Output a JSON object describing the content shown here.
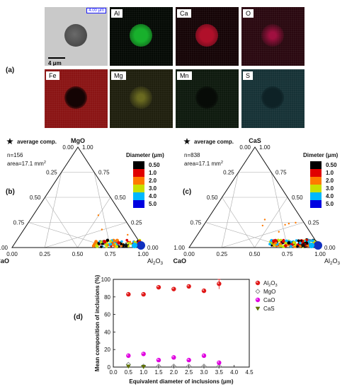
{
  "panel_a": {
    "label": "(a)",
    "maps": [
      {
        "name": "SE",
        "tag": "",
        "bg": "#c9c9c9",
        "spot": "#4a4a4a",
        "type": "se"
      },
      {
        "name": "Al",
        "tag": "Al",
        "bg": "#050a05",
        "spot": "#18b02c",
        "type": "bright"
      },
      {
        "name": "Ca",
        "tag": "Ca",
        "bg": "#150406",
        "spot": "#b0102a",
        "type": "bright"
      },
      {
        "name": "O",
        "tag": "O",
        "bg": "#2a0810",
        "spot": "#a01040",
        "type": "faint"
      },
      {
        "name": "Fe",
        "tag": "Fe",
        "bg": "#8a1414",
        "spot": "#140404",
        "type": "dark"
      },
      {
        "name": "Mg",
        "tag": "Mg",
        "bg": "#1f1f0e",
        "spot": "#6a6a20",
        "type": "faint"
      },
      {
        "name": "Mn",
        "tag": "Mn",
        "bg": "#0e1a0e",
        "spot": "#070b07",
        "type": "dark"
      },
      {
        "name": "S",
        "tag": "S",
        "bg": "#163236",
        "spot": "#0e2226",
        "type": "dark"
      }
    ],
    "scale_top": "4.00 μm",
    "scale_bottom": "4 μm"
  },
  "panel_b": {
    "label": "(b)",
    "legend_star": "average comp.",
    "n_text": "n=156",
    "area_text": "area=17.1 mm",
    "area_sup": "2",
    "top_label": "MgO",
    "left_label": "CaO",
    "right_label": "Al",
    "right_sub": "2",
    "right_tail": "O",
    "right_sub2": "3"
  },
  "panel_c": {
    "label": "(c)",
    "legend_star": "average comp.",
    "n_text": "n=838",
    "area_text": "area=17.1 mm",
    "area_sup": "2",
    "top_label": "CaS",
    "left_label": "CaO",
    "right_label": "Al",
    "right_sub": "2",
    "right_tail": "O",
    "right_sub2": "3"
  },
  "ternary_ticks": {
    "left_edge": [
      "0.00",
      "0.25",
      "0.50",
      "0.75",
      "1.00"
    ],
    "right_edge": [
      "1.00",
      "0.75",
      "0.50",
      "0.25",
      "0.00"
    ],
    "bottom_edge": [
      "0.00",
      "0.25",
      "0.50",
      "0.75",
      "1.00"
    ]
  },
  "diameter_legend_b": {
    "title": "Diameter (μm)",
    "entries": [
      {
        "label": "0.50",
        "color": "#000000"
      },
      {
        "label": "1.0",
        "color": "#e00000"
      },
      {
        "label": "2.0",
        "color": "#ff7a00"
      },
      {
        "label": "3.0",
        "color": "#c8e000"
      },
      {
        "label": "4.0",
        "color": "#00b8ff"
      },
      {
        "label": "5.0",
        "color": "#0000e0"
      }
    ]
  },
  "diameter_legend_c": {
    "title": "Dimeter (μm)",
    "entries": [
      {
        "label": "0.50",
        "color": "#000000"
      },
      {
        "label": "1.0",
        "color": "#e00000"
      },
      {
        "label": "2.0",
        "color": "#ff7a00"
      },
      {
        "label": "3.0",
        "color": "#c8e000"
      },
      {
        "label": "4.0",
        "color": "#00b8ff"
      },
      {
        "label": "5.0",
        "color": "#0000e0"
      }
    ]
  },
  "chart_data": {
    "type": "scatter",
    "panel_label": "(d)",
    "xlabel": "Equivalent diameter of inclusions (μm)",
    "ylabel": "Mean composition of inclusions (%)",
    "xlim": [
      0.0,
      4.5
    ],
    "ylim": [
      0,
      100
    ],
    "xticks": [
      "0.0",
      "0.5",
      "1.0",
      "1.5",
      "2.0",
      "2.5",
      "3.0",
      "3.5",
      "4.0",
      "4.5"
    ],
    "yticks": [
      "0",
      "20",
      "40",
      "60",
      "80",
      "100"
    ],
    "legend_placement": "top-right",
    "series": [
      {
        "name": "Al2O3",
        "label_main": "Al",
        "label_sub1": "2",
        "label_mid": "O",
        "label_sub2": "3",
        "color": "#e01818",
        "marker": "ball",
        "x": [
          0.5,
          1.0,
          1.5,
          2.0,
          2.5,
          3.0,
          3.5
        ],
        "y": [
          83,
          83,
          91,
          89,
          92,
          87,
          95
        ]
      },
      {
        "name": "MgO",
        "label_main": "MgO",
        "color": "#888888",
        "marker": "diamond",
        "x": [
          0.5,
          1.0,
          1.5,
          2.0,
          2.5,
          3.0,
          3.5
        ],
        "y": [
          3,
          1,
          1,
          1,
          1,
          1,
          1
        ]
      },
      {
        "name": "CaO",
        "label_main": "CaO",
        "color": "#e000e0",
        "marker": "ball",
        "x": [
          0.5,
          1.0,
          1.5,
          2.0,
          2.5,
          3.0,
          3.5
        ],
        "y": [
          13,
          15,
          8,
          11,
          8,
          13,
          5
        ]
      },
      {
        "name": "CaS",
        "label_main": "CaS",
        "color": "#6b6b00",
        "marker": "tri",
        "x": [
          0.5,
          1.0
        ],
        "y": [
          1,
          0.5
        ]
      }
    ],
    "error_bar": {
      "x": 3.5,
      "low": 89,
      "high": 100
    }
  }
}
